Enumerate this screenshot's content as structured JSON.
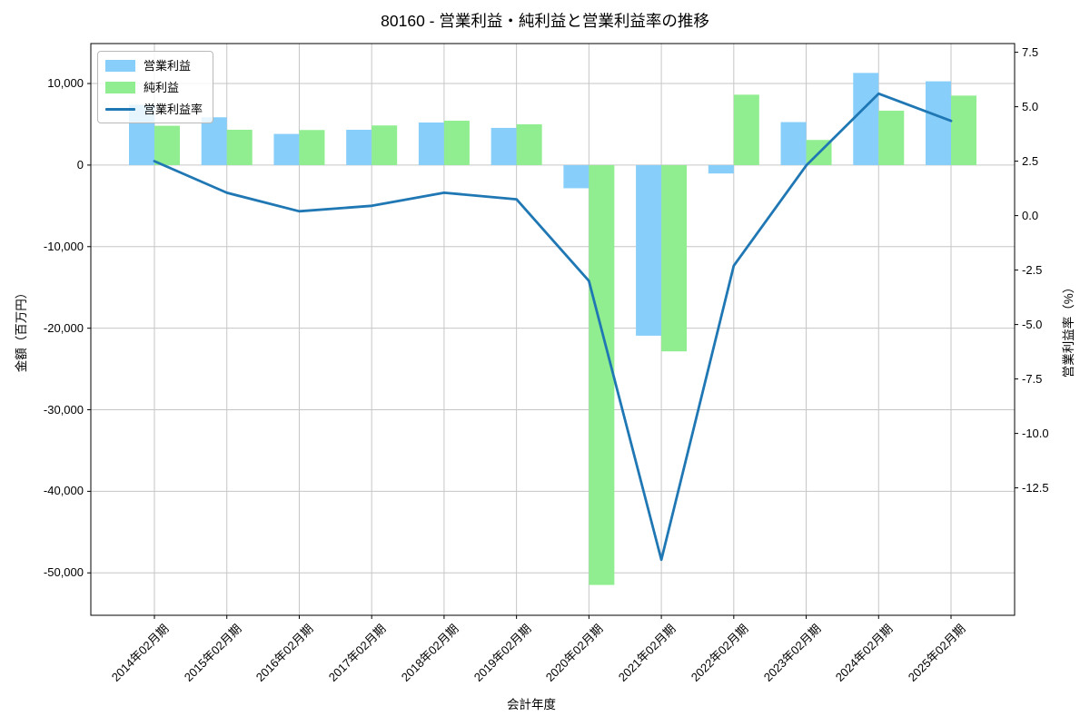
{
  "title": "80160 - 営業利益・純利益と営業利益率の推移",
  "axes": {
    "x_label": "会計年度",
    "y_left_label": "金額（百万円）",
    "y_right_label": "営業利益率（%）"
  },
  "legend": {
    "items": [
      {
        "label": "営業利益",
        "marker": "bar",
        "color": "#87CEFA"
      },
      {
        "label": "純利益",
        "marker": "bar",
        "color": "#90EE90"
      },
      {
        "label": "営業利益率",
        "marker": "line",
        "color": "#1F77B4"
      }
    ]
  },
  "colors": {
    "operating_income_bar": "#87CEFA",
    "net_income_bar": "#90EE90",
    "margin_line": "#1F77B4",
    "grid": "#c6c6c6",
    "spine": "#000000"
  },
  "chart_data": {
    "type": "bar+line",
    "title": "80160 - 営業利益・純利益と営業利益率の推移",
    "xlabel": "会計年度",
    "categories": [
      "2014年02月期",
      "2015年02月期",
      "2016年02月期",
      "2017年02月期",
      "2018年02月期",
      "2019年02月期",
      "2020年02月期",
      "2021年02月期",
      "2022年02月期",
      "2023年02月期",
      "2024年02月期",
      "2025年02月期"
    ],
    "series": [
      {
        "name": "営業利益",
        "type": "bar",
        "axis": "left",
        "color": "#87CEFA",
        "values": [
          7400,
          5860,
          3820,
          4330,
          5220,
          4560,
          -2840,
          -20920,
          -1030,
          5270,
          11300,
          10270
        ]
      },
      {
        "name": "純利益",
        "type": "bar",
        "axis": "left",
        "color": "#90EE90",
        "values": [
          4820,
          4330,
          4300,
          4860,
          5440,
          5000,
          -51480,
          -22840,
          8630,
          3080,
          6670,
          8520
        ]
      },
      {
        "name": "営業利益率",
        "type": "line",
        "axis": "right",
        "color": "#1F77B4",
        "values": [
          2.5,
          1.05,
          0.2,
          0.45,
          1.05,
          0.75,
          -3.0,
          -15.8,
          -2.3,
          2.3,
          5.6,
          4.35
        ]
      }
    ],
    "y_left": {
      "label": "金額（百万円）",
      "ticks": [
        10000,
        0,
        -10000,
        -20000,
        -30000,
        -40000,
        -50000
      ],
      "lim": [
        -55200,
        14900
      ]
    },
    "y_right": {
      "label": "営業利益率（%）",
      "ticks": [
        7.5,
        5.0,
        2.5,
        0.0,
        -2.5,
        -5.0,
        -7.5,
        -10.0,
        -12.5
      ],
      "lim": [
        -18.35,
        7.9
      ]
    },
    "grid": true,
    "legend_position": "upper left"
  }
}
